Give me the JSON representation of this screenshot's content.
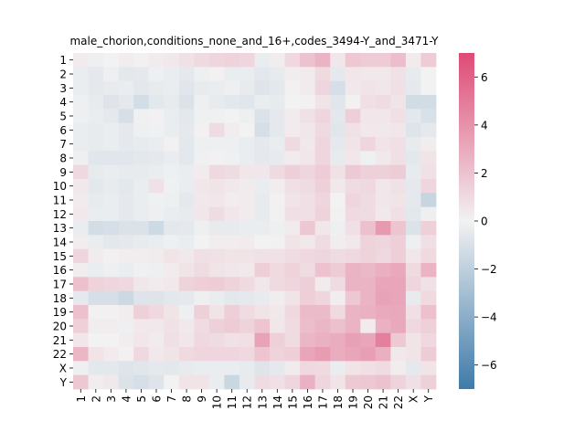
{
  "chart_data": {
    "type": "heatmap",
    "title": "male_chorion,conditions_none_and_16+,codes_3494-Y_and_3471-Y",
    "xlabel": "",
    "ylabel": "",
    "labels": [
      "1",
      "2",
      "3",
      "4",
      "5",
      "6",
      "7",
      "8",
      "9",
      "10",
      "11",
      "12",
      "13",
      "14",
      "15",
      "16",
      "17",
      "18",
      "19",
      "20",
      "21",
      "22",
      "X",
      "Y"
    ],
    "vmin": -7,
    "vmax": 7,
    "colorbar_ticks": [
      6,
      4,
      2,
      0,
      -2,
      -4,
      -6
    ],
    "colormap": {
      "negative": "#3f7aa9",
      "center": "#f2f2f2",
      "positive": "#de4a76"
    },
    "grid": false,
    "values": [
      [
        0.3,
        -0.2,
        0.0,
        0.2,
        0.1,
        0.3,
        0.4,
        0.7,
        1.0,
        1.2,
        1.3,
        1.2,
        -0.3,
        0.2,
        1.1,
        2.0,
        2.6,
        0.5,
        1.8,
        1.6,
        1.6,
        2.2,
        0.3,
        1.6
      ],
      [
        -0.3,
        -0.5,
        -0.2,
        -0.6,
        -0.5,
        -0.2,
        -0.3,
        -0.5,
        -0.2,
        0.1,
        -0.3,
        -0.3,
        -0.6,
        -0.4,
        0.2,
        0.3,
        1.0,
        -0.5,
        0.5,
        0.4,
        0.4,
        0.7,
        -0.4,
        0.0
      ],
      [
        -0.3,
        -0.5,
        -0.4,
        -0.3,
        -0.6,
        -0.4,
        -0.3,
        -0.7,
        -0.4,
        -0.3,
        -0.2,
        -0.4,
        -0.8,
        -0.6,
        0.1,
        0.3,
        1.2,
        -1.1,
        0.4,
        0.6,
        0.5,
        0.8,
        -0.5,
        0.0
      ],
      [
        -0.2,
        -0.4,
        -0.8,
        -0.5,
        -1.2,
        -0.6,
        -0.4,
        -0.9,
        -0.2,
        -0.4,
        -0.6,
        -0.7,
        -0.3,
        -0.4,
        0.0,
        0.1,
        0.6,
        -0.7,
        0.1,
        0.8,
        0.9,
        0.6,
        -1.3,
        -1.3
      ],
      [
        -0.2,
        -0.3,
        -0.5,
        -1.1,
        -0.1,
        0.1,
        -0.3,
        -0.6,
        -0.1,
        -0.1,
        0.0,
        -0.2,
        -0.9,
        -0.5,
        0.3,
        0.7,
        1.2,
        -0.6,
        1.5,
        0.5,
        0.5,
        0.8,
        -0.6,
        -1.0
      ],
      [
        -0.3,
        -0.4,
        -0.3,
        -0.5,
        -0.2,
        -0.1,
        -0.3,
        -0.5,
        0.1,
        0.9,
        0.2,
        0.0,
        -1.1,
        -0.5,
        0.3,
        0.5,
        1.0,
        -0.7,
        0.7,
        0.4,
        0.4,
        0.5,
        -0.8,
        -0.5
      ],
      [
        -0.3,
        -0.4,
        -0.3,
        -0.5,
        -0.4,
        -0.3,
        0.1,
        -0.6,
        -0.2,
        -0.2,
        -0.2,
        -0.3,
        -0.5,
        -0.3,
        1.0,
        0.4,
        1.2,
        -0.5,
        0.6,
        1.2,
        0.6,
        0.8,
        -0.4,
        0.2
      ],
      [
        -0.2,
        -0.7,
        -0.7,
        -0.7,
        -0.6,
        -0.5,
        -0.3,
        -0.6,
        -0.1,
        0.1,
        -0.1,
        -0.3,
        -0.5,
        -0.4,
        0.3,
        0.5,
        1.2,
        -0.4,
        0.5,
        -0.1,
        0.4,
        0.8,
        -0.6,
        0.6
      ],
      [
        1.1,
        -0.4,
        -0.3,
        -0.4,
        -0.4,
        -0.3,
        -0.2,
        -0.3,
        0.3,
        1.1,
        0.9,
        0.5,
        0.5,
        1.0,
        1.5,
        1.2,
        1.6,
        0.7,
        1.7,
        1.4,
        1.4,
        1.6,
        -0.4,
        0.7
      ],
      [
        0.4,
        -0.6,
        -0.4,
        -0.6,
        -0.3,
        0.7,
        -0.1,
        -0.3,
        0.5,
        0.6,
        0.4,
        0.3,
        -0.3,
        0.2,
        0.8,
        0.9,
        1.4,
        0.4,
        0.9,
        1.1,
        0.5,
        0.7,
        -0.5,
        1.2
      ],
      [
        0.3,
        -0.4,
        -0.3,
        -0.5,
        -0.3,
        -0.1,
        -0.2,
        -0.5,
        0.4,
        0.5,
        0.2,
        0.3,
        -0.4,
        0.1,
        0.6,
        0.8,
        1.2,
        0.0,
        1.2,
        0.9,
        0.5,
        0.6,
        -0.5,
        -1.7
      ],
      [
        0.4,
        -0.3,
        -0.3,
        -0.5,
        -0.3,
        -0.2,
        -0.3,
        -0.4,
        0.5,
        0.9,
        0.5,
        0.3,
        -0.4,
        0.1,
        0.8,
        0.8,
        1.3,
        0.1,
        1.0,
        0.9,
        0.4,
        0.8,
        -0.6,
        -0.2
      ],
      [
        -0.3,
        -1.2,
        -1.1,
        -0.9,
        -0.9,
        -1.4,
        -0.6,
        -0.5,
        -0.2,
        -0.4,
        -0.4,
        -0.3,
        -0.3,
        -0.2,
        0.3,
        1.8,
        0.5,
        -0.2,
        0.8,
        2.1,
        3.7,
        1.9,
        -0.9,
        1.4
      ],
      [
        0.2,
        -0.3,
        -0.6,
        -0.5,
        -0.4,
        -0.3,
        -0.2,
        -0.3,
        0.0,
        0.2,
        0.2,
        0.3,
        0.0,
        0.1,
        0.6,
        0.4,
        0.9,
        0.2,
        0.4,
        1.3,
        1.2,
        1.5,
        -0.2,
        0.8
      ],
      [
        1.2,
        0.3,
        0.1,
        0.2,
        0.2,
        0.3,
        0.6,
        0.4,
        0.8,
        0.7,
        0.6,
        0.6,
        0.7,
        0.7,
        0.9,
        1.1,
        1.2,
        0.9,
        1.1,
        1.3,
        1.1,
        1.5,
        0.5,
        1.0
      ],
      [
        0.2,
        -0.3,
        -0.2,
        -0.3,
        -0.1,
        -0.2,
        0.3,
        0.6,
        0.9,
        0.6,
        0.5,
        0.4,
        1.5,
        1.0,
        1.3,
        0.9,
        2.0,
        1.6,
        2.6,
        2.4,
        2.8,
        3.1,
        1.0,
        2.6
      ],
      [
        2.1,
        1.3,
        1.2,
        1.1,
        0.5,
        0.3,
        0.4,
        1.3,
        1.5,
        1.6,
        1.3,
        1.0,
        0.5,
        1.0,
        1.2,
        1.5,
        0.3,
        0.9,
        2.6,
        2.6,
        3.2,
        3.2,
        1.2,
        0.7
      ],
      [
        -0.5,
        -1.1,
        -1.1,
        -1.5,
        -0.8,
        -0.8,
        -0.6,
        -0.5,
        -0.2,
        -0.3,
        -0.6,
        -0.5,
        -0.4,
        0.2,
        0.6,
        1.5,
        1.2,
        0.2,
        1.8,
        2.6,
        3.3,
        3.2,
        -0.4,
        1.0
      ],
      [
        2.1,
        0.1,
        0.1,
        0.2,
        1.4,
        1.1,
        0.6,
        -0.2,
        1.4,
        0.6,
        1.5,
        0.9,
        0.6,
        0.4,
        1.1,
        2.3,
        2.3,
        1.0,
        2.6,
        2.7,
        3.0,
        3.1,
        0.8,
        2.1
      ],
      [
        1.4,
        0.2,
        0.2,
        -0.2,
        0.4,
        0.4,
        0.7,
        0.4,
        0.9,
        1.4,
        1.6,
        1.3,
        1.9,
        0.5,
        0.9,
        2.2,
        2.5,
        2.1,
        2.6,
        0.3,
        2.7,
        3.1,
        1.1,
        1.4
      ],
      [
        0.5,
        0.0,
        0.0,
        0.2,
        0.5,
        0.3,
        0.8,
        0.5,
        1.1,
        0.9,
        0.7,
        0.8,
        3.3,
        1.4,
        0.9,
        2.5,
        2.7,
        2.9,
        3.4,
        3.2,
        4.8,
        1.7,
        0.6,
        1.1
      ],
      [
        2.5,
        0.6,
        0.3,
        0.1,
        1.1,
        0.4,
        0.6,
        1.0,
        1.2,
        1.2,
        1.2,
        1.1,
        1.9,
        1.3,
        1.5,
        3.2,
        3.6,
        2.9,
        3.2,
        3.5,
        2.8,
        0.4,
        0.6,
        1.6
      ],
      [
        -0.2,
        -0.6,
        -0.6,
        -0.8,
        -0.7,
        -0.5,
        -0.6,
        -0.4,
        -0.3,
        -0.3,
        -0.3,
        -0.4,
        -0.8,
        -0.5,
        0.3,
        1.1,
        1.0,
        -0.3,
        0.6,
        0.8,
        0.9,
        0.2,
        -0.5,
        0.6
      ],
      [
        1.8,
        0.2,
        0.4,
        -0.9,
        -1.1,
        -0.8,
        0.0,
        0.6,
        0.6,
        -0.3,
        -1.6,
        -0.4,
        0.9,
        0.8,
        1.2,
        2.7,
        1.2,
        0.6,
        1.7,
        1.8,
        2.0,
        1.3,
        0.8,
        1.4
      ]
    ]
  }
}
